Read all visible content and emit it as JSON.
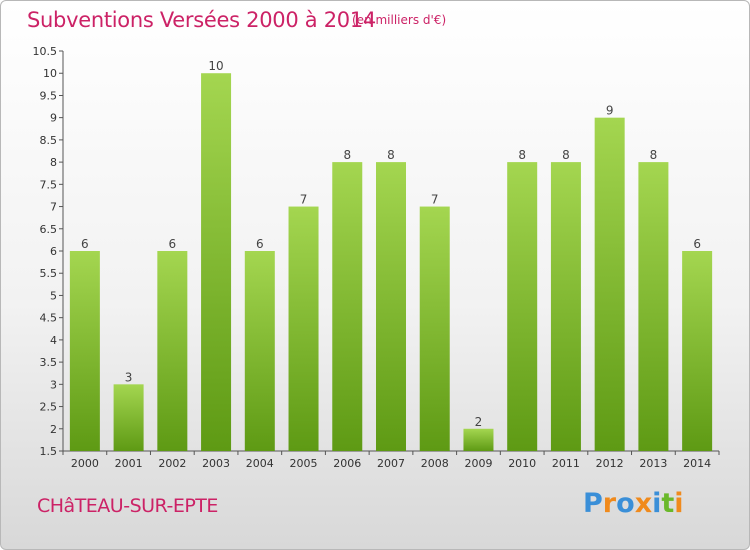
{
  "header": {
    "title": "Subventions Versées 2000 à 2014",
    "subtitle": "(en milliers d'€)"
  },
  "footer": {
    "city": "CHâTEAU-SUR-EPTE",
    "logo": "Proxiti"
  },
  "colors": {
    "title": "#cc2266",
    "bar_top": "#a4d650",
    "bar_bottom": "#5e9a14",
    "logo_letters": [
      "#3a8fd8",
      "#f08a1c",
      "#3a8fd8",
      "#f08a1c",
      "#3a8fd8",
      "#6ab82a",
      "#f08a1c"
    ]
  },
  "chart_data": {
    "type": "bar",
    "title": "Subventions Versées 2000 à 2014",
    "xlabel": "",
    "ylabel": "",
    "categories": [
      "2000",
      "2001",
      "2002",
      "2003",
      "2004",
      "2005",
      "2006",
      "2007",
      "2008",
      "2009",
      "2010",
      "2011",
      "2012",
      "2013",
      "2014"
    ],
    "values": [
      6,
      3,
      6,
      10,
      6,
      7,
      8,
      8,
      7,
      2,
      8,
      8,
      9,
      8,
      6
    ],
    "value_labels": [
      "6",
      "3",
      "6",
      "10",
      "6",
      "7",
      "8",
      "8",
      "7",
      "2",
      "8",
      "8",
      "9",
      "8",
      "6"
    ],
    "ylim": [
      1.5,
      10.5
    ],
    "yticks": [
      1.5,
      2,
      2.5,
      3,
      3.5,
      4,
      4.5,
      5,
      5.5,
      6,
      6.5,
      7,
      7.5,
      8,
      8.5,
      9,
      9.5,
      10,
      10.5
    ],
    "ytick_labels": [
      "1.5",
      "2",
      "2.5",
      "3",
      "3.5",
      "4",
      "4.5",
      "5",
      "5.5",
      "6",
      "6.5",
      "7",
      "7.5",
      "8",
      "8.5",
      "9",
      "9.5",
      "10",
      "10.5"
    ],
    "grid": false,
    "legend": "none"
  }
}
